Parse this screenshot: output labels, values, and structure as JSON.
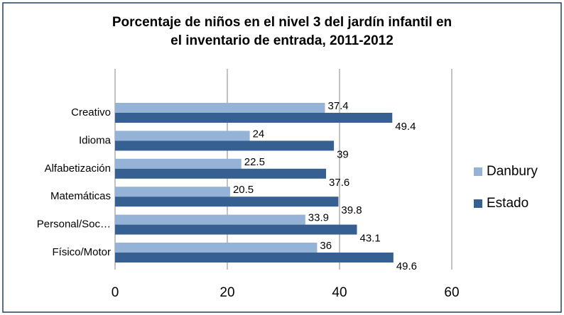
{
  "chart_data": {
    "type": "hbar",
    "title": [
      "Porcentaje de niños en el nivel 3 del jardín infantil en",
      "el inventario de entrada, 2011-2012"
    ],
    "categories": [
      "Creativo",
      "Idioma",
      "Alfabetización",
      "Matemáticas",
      "Personal/Soc…",
      "Físico/Motor"
    ],
    "series": [
      {
        "name": "Danbury",
        "color": "#95b3d7",
        "values": [
          37.4,
          24,
          22.5,
          20.5,
          33.9,
          36
        ]
      },
      {
        "name": "Estado",
        "color": "#376092",
        "values": [
          49.4,
          39,
          37.6,
          39.8,
          43.1,
          49.6
        ]
      }
    ],
    "xlim": [
      0,
      60
    ],
    "xticks": [
      0,
      20,
      40,
      60
    ],
    "grid": true,
    "legend": "right"
  }
}
